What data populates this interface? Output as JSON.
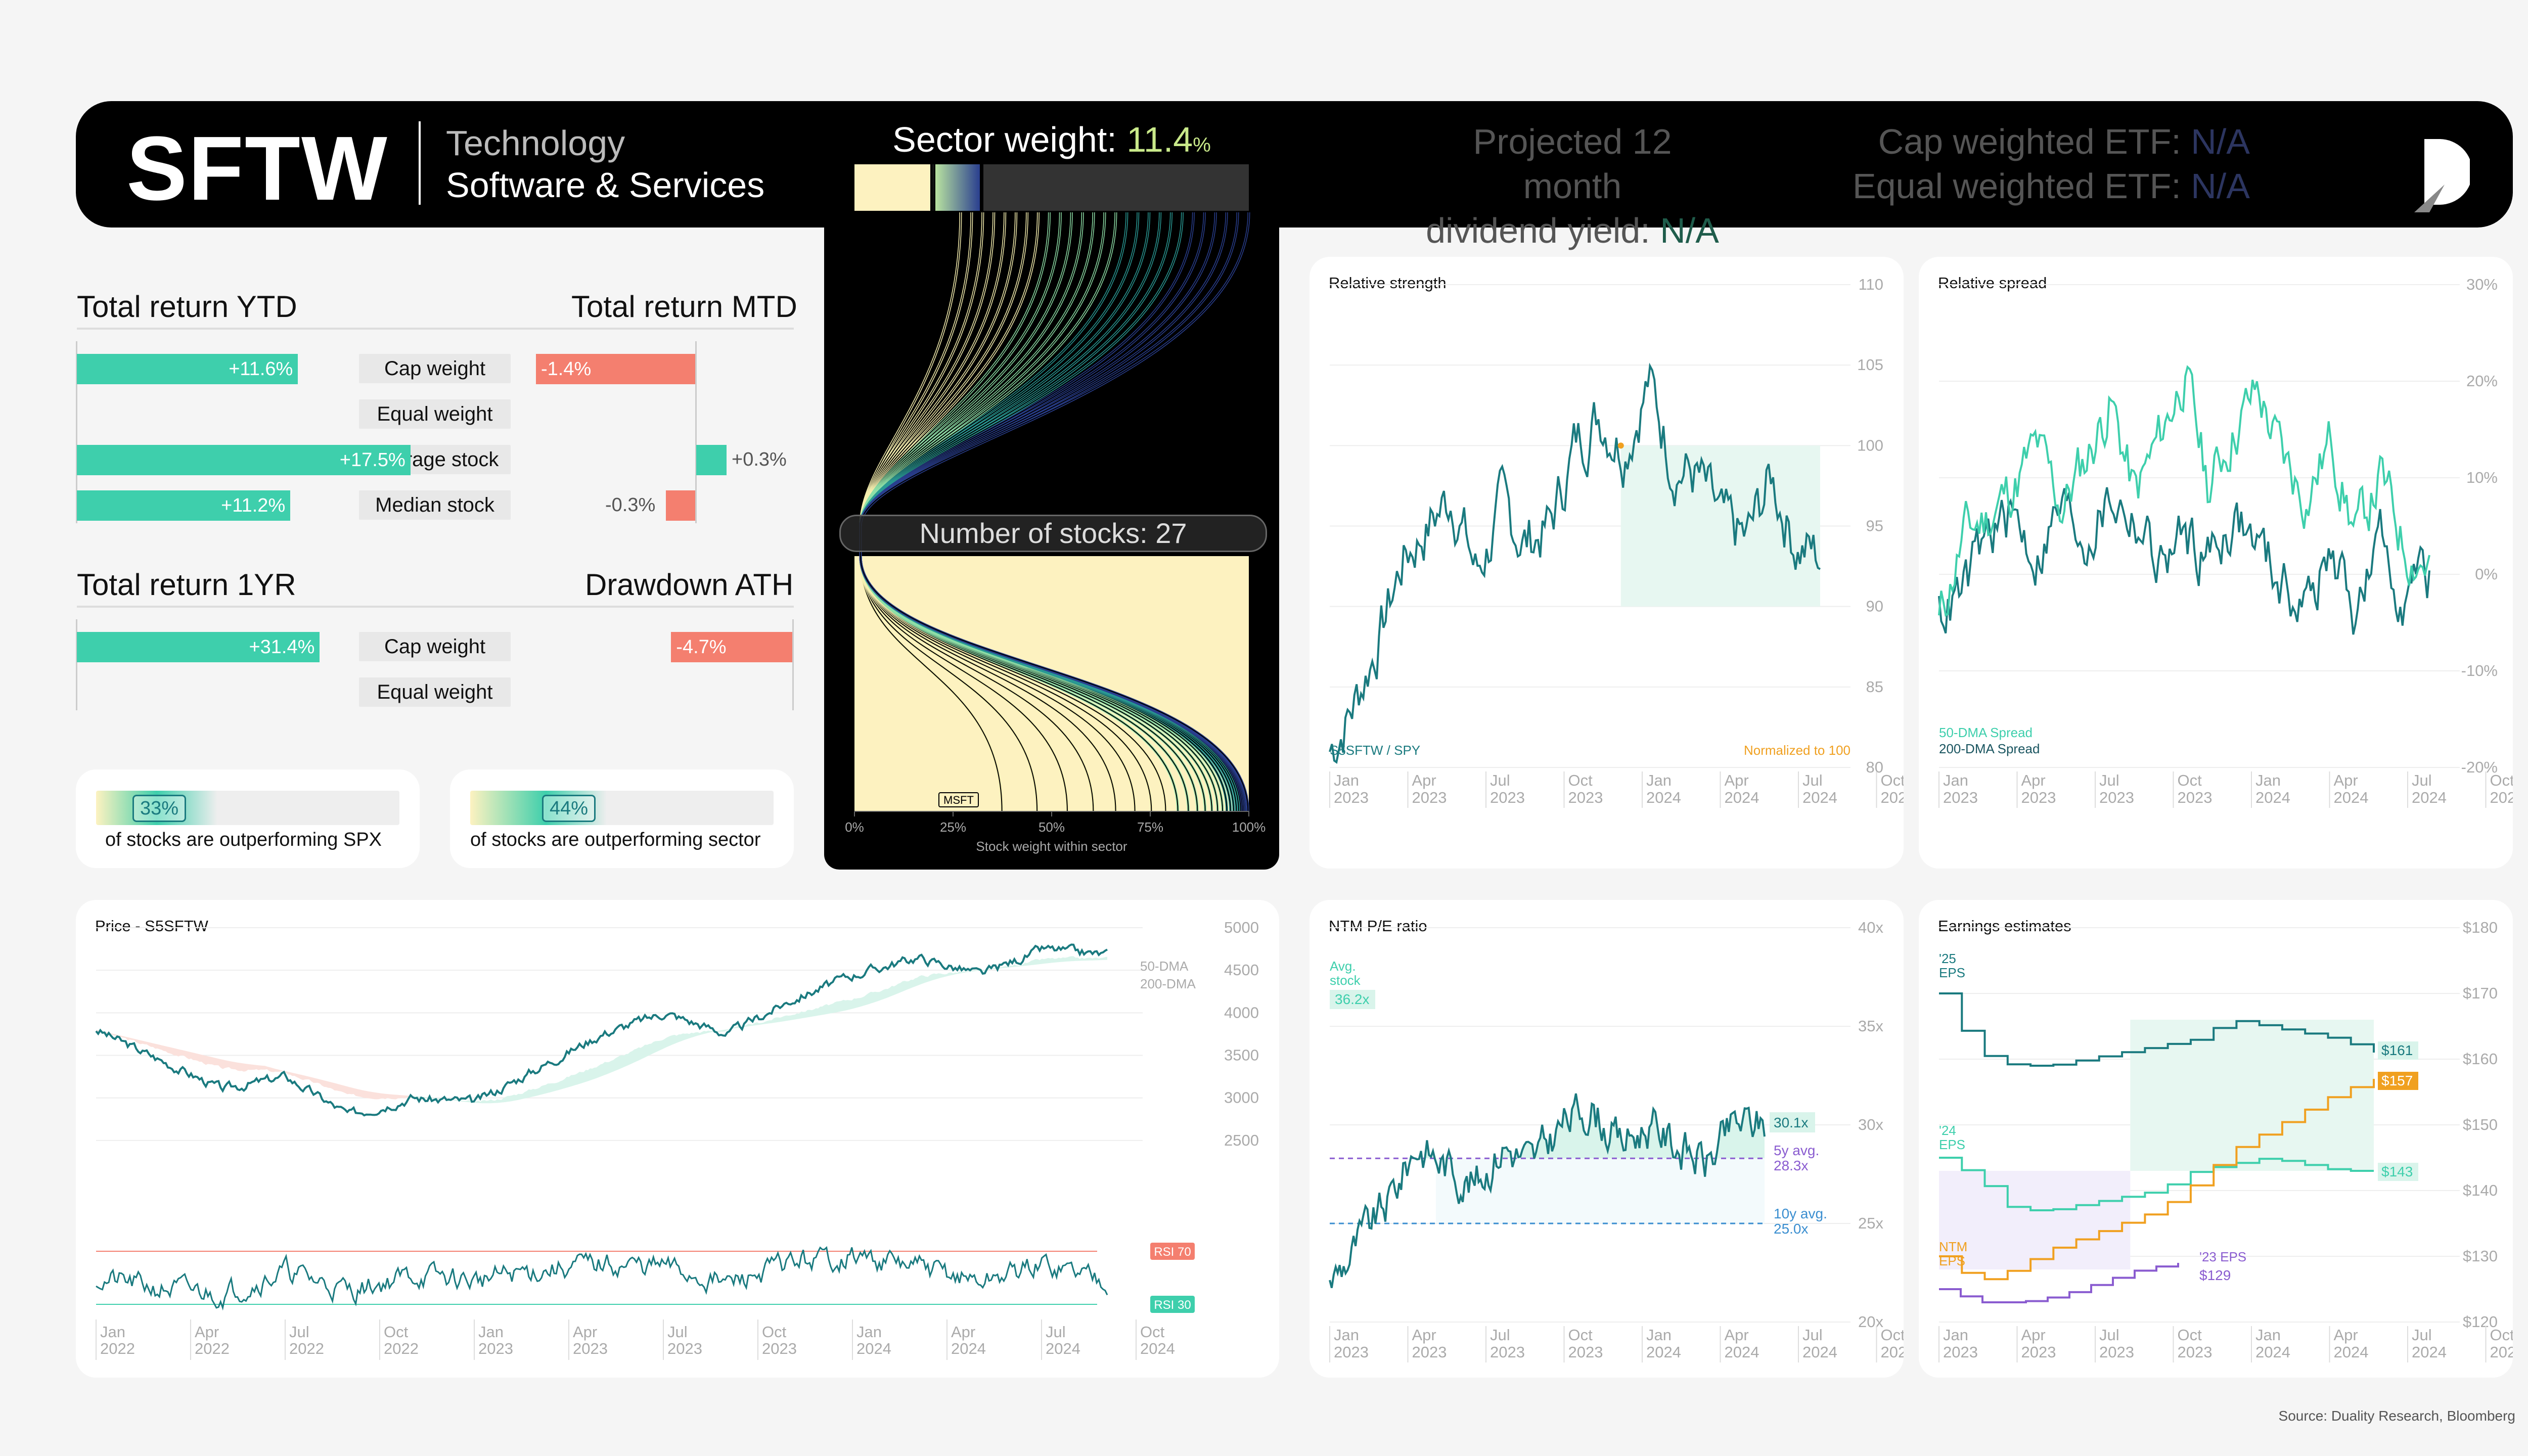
{
  "header": {
    "ticker": "SFTW",
    "sector": "Technology",
    "industry": "Software & Services",
    "sector_weight_label": "Sector weight:",
    "sector_weight_value": "11.4",
    "sector_weight_unit": "%",
    "div_line1": "Projected 12 month",
    "div_line2": "dividend yield:",
    "div_value": "N/A",
    "cap_etf_label": "Cap weighted ETF:",
    "cap_etf_value": "N/A",
    "eq_etf_label": "Equal weighted ETF:",
    "eq_etf_value": "N/A",
    "logo_icon": "duality-d-logo"
  },
  "funnel": {
    "number_of_stocks": "Number of stocks: 27",
    "largest_label": "MSFT",
    "xticks": [
      "0%",
      "25%",
      "50%",
      "75%",
      "100%"
    ],
    "xlabel": "Stock weight within sector"
  },
  "returns": {
    "ytd_title": "Total return YTD",
    "mtd_title": "Total return MTD",
    "yr_title": "Total return 1YR",
    "dd_title": "Drawdown ATH",
    "rows_top": [
      {
        "label": "Cap weight",
        "ytd": "+11.6%",
        "ytd_val": 11.6,
        "mtd": "-1.4%",
        "mtd_val": -1.4
      },
      {
        "label": "Equal weight",
        "ytd": "",
        "ytd_val": 0,
        "mtd": "",
        "mtd_val": 0
      },
      {
        "label": "Average stock",
        "ytd": "+17.5%",
        "ytd_val": 17.5,
        "mtd": "+0.3%",
        "mtd_val": 0.3
      },
      {
        "label": "Median stock",
        "ytd": "+11.2%",
        "ytd_val": 11.2,
        "mtd": "-0.3%",
        "mtd_val": -0.3
      }
    ],
    "rows_bottom": [
      {
        "label": "Cap weight",
        "yr": "+31.4%",
        "yr_val": 31.4,
        "dd": "-4.7%",
        "dd_val": -4.7
      },
      {
        "label": "Equal weight",
        "yr": "",
        "yr_val": 0,
        "dd": "",
        "dd_val": 0
      }
    ],
    "outperf_spx_pct": "33%",
    "outperf_spx_text": "of stocks are outperforming SPX",
    "outperf_sector_pct": "44%",
    "outperf_sector_text": "of stocks are outperforming sector"
  },
  "colors": {
    "teal": "#1a7a7f",
    "mint": "#3ecfac",
    "salmon": "#f47f6f",
    "orange": "#f0a020",
    "purple": "#8a5cd0",
    "cream": "#fdf2c0"
  },
  "chart_data": [
    {
      "id": "relative_strength",
      "type": "line",
      "title": "Relative strength",
      "ylim": [
        80,
        110
      ],
      "yticks": [
        "110",
        "105",
        "100",
        "95",
        "90",
        "85",
        "80"
      ],
      "xticks": [
        "Jan\n2023",
        "Apr\n2023",
        "Jul\n2023",
        "Oct\n2023",
        "Jan\n2024",
        "Apr\n2024",
        "Jul\n2024",
        "Oct\n2024"
      ],
      "series_label": "S5SFTW / SPY",
      "note": "Normalized to 100",
      "x": [
        "2023-01",
        "2023-02",
        "2023-03",
        "2023-04",
        "2023-05",
        "2023-06",
        "2023-07",
        "2023-08",
        "2023-09",
        "2023-10",
        "2023-11",
        "2023-12",
        "2024-01",
        "2024-02",
        "2024-03",
        "2024-04",
        "2024-05",
        "2024-06",
        "2024-07",
        "2024-08",
        "2024-09"
      ],
      "values": [
        81,
        84,
        88,
        93,
        95,
        97,
        92,
        96,
        94,
        95,
        100,
        102,
        100,
        104,
        99,
        98,
        95,
        94,
        98,
        94,
        93
      ]
    },
    {
      "id": "relative_spread",
      "type": "line",
      "title": "Relative spread",
      "ylim": [
        -20,
        30
      ],
      "yticks": [
        "30%",
        "20%",
        "10%",
        "0%",
        "-10%",
        "-20%"
      ],
      "xticks": [
        "Jan\n2023",
        "Apr\n2023",
        "Jul\n2023",
        "Oct\n2023",
        "Jan\n2024",
        "Apr\n2024",
        "Jul\n2024",
        "Oct\n2024"
      ],
      "series": [
        {
          "name": "50-DMA Spread",
          "values": [
            -5,
            4,
            6,
            9,
            13,
            7,
            12,
            18,
            8,
            14,
            21,
            9,
            15,
            19,
            12,
            8,
            14,
            4,
            10,
            3,
            1
          ]
        },
        {
          "name": "200-DMA Spread",
          "values": [
            -4,
            -2,
            4,
            6,
            2,
            7,
            4,
            8,
            6,
            1,
            4,
            2,
            6,
            3,
            -1,
            -3,
            2,
            -4,
            3,
            -2,
            0
          ]
        }
      ]
    },
    {
      "id": "price",
      "type": "line",
      "title": "Price - S5SFTW",
      "ylim": [
        2000,
        5000
      ],
      "yticks": [
        "5000",
        "4500",
        "4000",
        "3500",
        "3000",
        "2500"
      ],
      "xticks": [
        "Jan\n2022",
        "Apr\n2022",
        "Jul\n2022",
        "Oct\n2022",
        "Jan\n2023",
        "Apr\n2023",
        "Jul\n2023",
        "Oct\n2023",
        "Jan\n2024",
        "Apr\n2024",
        "Jul\n2024",
        "Oct\n2024"
      ],
      "legend": [
        "50-DMA",
        "200-DMA"
      ],
      "rsi_high": "RSI 70",
      "rsi_low": "RSI 30",
      "x": [
        "2022-01",
        "2022-03",
        "2022-05",
        "2022-07",
        "2022-09",
        "2022-11",
        "2023-01",
        "2023-03",
        "2023-05",
        "2023-07",
        "2023-09",
        "2023-11",
        "2024-01",
        "2024-03",
        "2024-05",
        "2024-07",
        "2024-09"
      ],
      "values": [
        3800,
        3450,
        3100,
        3250,
        2800,
        3000,
        2950,
        3350,
        3750,
        4000,
        3750,
        4150,
        4450,
        4650,
        4450,
        4750,
        4680
      ],
      "rsi": [
        50,
        42,
        38,
        55,
        40,
        52,
        48,
        56,
        60,
        58,
        45,
        62,
        66,
        58,
        47,
        60,
        50
      ]
    },
    {
      "id": "pe_ratio",
      "type": "line",
      "title": "NTM P/E ratio",
      "ylim": [
        20,
        40
      ],
      "yticks": [
        "40x",
        "35x",
        "30x",
        "25x",
        "20x"
      ],
      "xticks": [
        "Jan\n2023",
        "Apr\n2023",
        "Jul\n2023",
        "Oct\n2023",
        "Jan\n2024",
        "Apr\n2024",
        "Jul\n2024",
        "Oct\n2024"
      ],
      "avg_stock_label": "Avg.\nstock",
      "avg_stock_value": "36.2x",
      "current": "30.1x",
      "avg5y_label": "5y avg.",
      "avg5y": "28.3x",
      "avg10y_label": "10y avg.",
      "avg10y": "25.0x",
      "values": [
        22,
        24,
        26,
        29,
        28,
        27,
        29,
        28,
        30,
        31,
        29,
        30,
        29,
        28,
        30,
        30.1
      ]
    },
    {
      "id": "earnings_estimates",
      "type": "line",
      "title": "Earnings estimates",
      "ylim": [
        120,
        180
      ],
      "yticks": [
        "$180",
        "$170",
        "$160",
        "$150",
        "$140",
        "$130",
        "$120"
      ],
      "xticks": [
        "Jan\n2023",
        "Apr\n2023",
        "Jul\n2023",
        "Oct\n2023",
        "Jan\n2024",
        "Apr\n2024",
        "Jul\n2024",
        "Oct\n2024"
      ],
      "series": [
        {
          "name": "'25\nEPS",
          "end": "$161",
          "values": [
            170,
            161,
            159,
            159,
            160,
            161,
            162,
            163,
            166,
            165,
            164,
            163,
            161
          ]
        },
        {
          "name": "'24\nEPS",
          "end": "$143",
          "values": [
            145,
            142,
            137,
            137,
            138,
            139,
            140,
            143,
            144,
            145,
            144,
            143,
            143
          ]
        },
        {
          "name": "NTM\nEPS",
          "end": "$157",
          "values": [
            130,
            126,
            128,
            131,
            133,
            135,
            137,
            141,
            146,
            149,
            152,
            155,
            157
          ]
        },
        {
          "name": "'23 EPS",
          "end": "$129",
          "values": [
            125,
            123,
            123,
            124,
            126,
            128,
            129
          ]
        }
      ]
    }
  ],
  "source": "Source: Duality Research, Bloomberg"
}
